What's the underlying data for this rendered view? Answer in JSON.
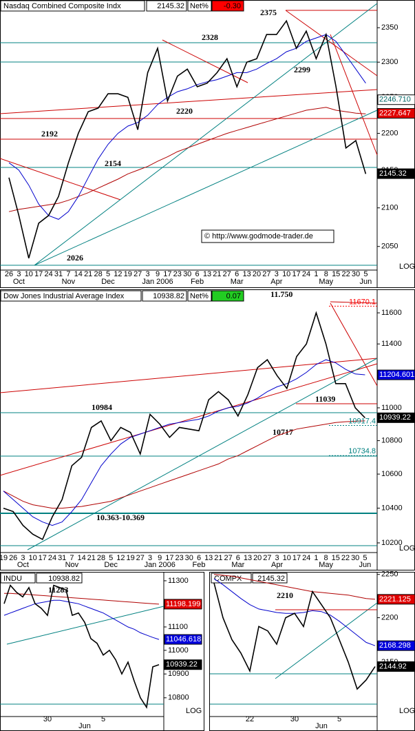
{
  "chart_data": [
    {
      "type": "line",
      "title": "Nasdaq Combined Composite Indx",
      "last": "2145.32",
      "net_label": "Net%",
      "net": "-0.30",
      "net_color": "#ff0000",
      "categories": [
        "26",
        "3",
        "10",
        "17",
        "24",
        "31",
        "7",
        "14",
        "21",
        "28",
        "5",
        "12",
        "19",
        "27",
        "3",
        "9",
        "17",
        "23",
        "30",
        "6",
        "13",
        "21",
        "27",
        "6",
        "13",
        "20",
        "27",
        "3",
        "10",
        "17",
        "24",
        "1",
        "8",
        "15",
        "22",
        "30",
        "5"
      ],
      "month_labels": [
        null,
        "Oct",
        null,
        null,
        null,
        null,
        "Nov",
        null,
        null,
        null,
        "Dec",
        null,
        null,
        null,
        null,
        "Jan 2006",
        null,
        null,
        null,
        "Feb",
        null,
        null,
        null,
        "Mar",
        null,
        null,
        null,
        "Apr",
        null,
        null,
        null,
        null,
        "May",
        null,
        null,
        null,
        "Jun"
      ],
      "series": [
        {
          "color": "#b00000",
          "values": [
            2095,
            2098,
            2100,
            2102,
            2104,
            2106,
            2110,
            2115,
            2120,
            2126,
            2132,
            2138,
            2145,
            2150,
            2155,
            2162,
            2168,
            2175,
            2180,
            2185,
            2190,
            2195,
            2200,
            2204,
            2208,
            2212,
            2216,
            2220,
            2224,
            2228,
            2232,
            2234,
            2236,
            2232,
            2230,
            2228,
            2227
          ]
        },
        {
          "color": "#0000cc",
          "values": [
            2160,
            2150,
            2130,
            2105,
            2090,
            2085,
            2095,
            2115,
            2140,
            2165,
            2185,
            2200,
            2210,
            2215,
            2225,
            2240,
            2250,
            2258,
            2262,
            2268,
            2272,
            2275,
            2280,
            2285,
            2285,
            2290,
            2298,
            2305,
            2315,
            2320,
            2330,
            2335,
            2340,
            2330,
            2310,
            2290,
            2270
          ]
        },
        {
          "color": "#000000",
          "values": [
            2140,
            2090,
            2035,
            2080,
            2090,
            2115,
            2160,
            2200,
            2230,
            2235,
            2255,
            2255,
            2250,
            2205,
            2285,
            2320,
            2245,
            2280,
            2290,
            2265,
            2270,
            2285,
            2305,
            2265,
            2300,
            2305,
            2340,
            2340,
            2360,
            2320,
            2345,
            2305,
            2340,
            2265,
            2180,
            2190,
            2145
          ]
        }
      ],
      "ylim": [
        2020,
        2391
      ],
      "yticks": [
        2050,
        2100,
        2150,
        2200,
        2250,
        2300,
        2350
      ],
      "log_scale": true,
      "scale_label": "LOG",
      "price_tags": [
        {
          "value": 2246.71,
          "label": "2246.710",
          "fill": "#ffffff",
          "text_color": "#006666"
        },
        {
          "value": 2227.647,
          "label": "2227.647",
          "fill": "#e00000",
          "text_color": "#ffffff"
        },
        {
          "value": 2145.32,
          "label": "2145.32",
          "fill": "#000000",
          "text_color": "#ffffff"
        }
      ],
      "annotations": [
        "2375",
        "2328",
        "2220",
        "2192",
        "2154",
        "2299",
        "2026",
        "© http://www.godmode-trader.de"
      ]
    },
    {
      "type": "line",
      "title": "Dow Jones Industrial Average Index",
      "last": "10938.82",
      "net_label": "Net%",
      "net": "0.07",
      "net_color": "#22cc22",
      "categories": [
        "19",
        "26",
        "3",
        "10",
        "17",
        "24",
        "31",
        "7",
        "14",
        "21",
        "28",
        "5",
        "12",
        "19",
        "27",
        "3",
        "9",
        "17",
        "23",
        "30",
        "6",
        "13",
        "21",
        "27",
        "6",
        "13",
        "20",
        "27",
        "3",
        "10",
        "17",
        "24",
        "1",
        "8",
        "15",
        "22",
        "30",
        "5"
      ],
      "month_labels": [
        null,
        null,
        "Oct",
        null,
        null,
        null,
        null,
        "Nov",
        null,
        null,
        null,
        "Dec",
        null,
        null,
        null,
        null,
        "Jan 2006",
        null,
        null,
        null,
        "Feb",
        null,
        null,
        null,
        "Mar",
        null,
        null,
        null,
        "Apr",
        null,
        null,
        null,
        null,
        "May",
        null,
        null,
        null,
        "Jun"
      ],
      "series": [
        {
          "color": "#b00000",
          "values": [
            10500,
            10470,
            10440,
            10420,
            10410,
            10400,
            10400,
            10405,
            10410,
            10420,
            10430,
            10440,
            10460,
            10480,
            10500,
            10520,
            10540,
            10560,
            10580,
            10600,
            10620,
            10640,
            10660,
            10690,
            10710,
            10740,
            10770,
            10800,
            10830,
            10850,
            10870,
            10880,
            10890,
            10900,
            10910,
            10915,
            10918,
            10920
          ]
        },
        {
          "color": "#0000cc",
          "values": [
            10500,
            10450,
            10400,
            10350,
            10320,
            10300,
            10320,
            10380,
            10450,
            10550,
            10650,
            10720,
            10780,
            10820,
            10840,
            10860,
            10880,
            10900,
            10910,
            10920,
            10930,
            10950,
            10980,
            11000,
            11010,
            11030,
            11060,
            11100,
            11130,
            11150,
            11180,
            11220,
            11270,
            11300,
            11280,
            11240,
            11210,
            11205
          ]
        },
        {
          "color": "#000000",
          "values": [
            10400,
            10380,
            10300,
            10250,
            10220,
            10350,
            10450,
            10650,
            10700,
            10880,
            10920,
            10800,
            10880,
            10850,
            10720,
            10960,
            10900,
            10820,
            10880,
            10870,
            10860,
            11050,
            11100,
            11050,
            10950,
            11080,
            11250,
            11300,
            11200,
            11120,
            11320,
            11400,
            11600,
            11400,
            11150,
            11150,
            11000,
            10939
          ]
        }
      ],
      "ylim": [
        10145,
        11663
      ],
      "yticks": [
        10200,
        10400,
        10600,
        10800,
        11000,
        11200,
        11400,
        11600
      ],
      "log_scale": true,
      "scale_label": "LOG",
      "price_tags": [
        {
          "value": 11204.601,
          "label": "11204.601",
          "fill": "#0000dd",
          "text_color": "#ffffff"
        },
        {
          "value": 10939.22,
          "label": "10939.22",
          "fill": "#000000",
          "text_color": "#ffffff"
        },
        {
          "value": 10917.4,
          "label": "10917.4",
          "fill": "none",
          "text_color": "#008080"
        },
        {
          "value": 10734.8,
          "label": "10734.8",
          "fill": "none",
          "text_color": "#008080"
        },
        {
          "value": 11670.1,
          "label": "11670.1",
          "fill": "none",
          "text_color": "#ff0000"
        }
      ],
      "annotations": [
        "11.750",
        "10984",
        "11039",
        "10717",
        "10.363-10.369"
      ]
    },
    {
      "type": "line",
      "title": "INDU",
      "last": "10938.82",
      "categories": [
        null,
        null,
        null,
        null,
        null,
        null,
        null,
        "30",
        null,
        null,
        null,
        null,
        null,
        null,
        null,
        null,
        "5",
        null,
        null,
        null,
        null,
        null,
        null,
        null,
        null,
        null
      ],
      "month_labels": [
        null,
        null,
        null,
        null,
        null,
        null,
        null,
        null,
        null,
        null,
        null,
        null,
        null,
        "Jun",
        null,
        null,
        null,
        null,
        null,
        null,
        null,
        null,
        null,
        null,
        null,
        null
      ],
      "series": [
        {
          "color": "#b00000",
          "values": [
            11245,
            11245,
            11243,
            11242,
            11240,
            11238,
            11236,
            11234,
            11232,
            11230,
            11228,
            11226,
            11224,
            11222,
            11220,
            11218,
            11216,
            11214,
            11212,
            11210,
            11208,
            11206,
            11204,
            11202,
            11200,
            11198.199
          ]
        },
        {
          "color": "#0000cc",
          "values": [
            11150,
            11160,
            11170,
            11180,
            11190,
            11200,
            11205,
            11210,
            11215,
            11215,
            11210,
            11205,
            11200,
            11190,
            11180,
            11170,
            11160,
            11145,
            11130,
            11115,
            11100,
            11090,
            11075,
            11065,
            11055,
            11046.618
          ]
        },
        {
          "color": "#000000",
          "values": [
            11200,
            11280,
            11250,
            11230,
            11270,
            11200,
            11180,
            11150,
            11280,
            11270,
            11260,
            11150,
            11160,
            11120,
            11050,
            11030,
            10980,
            11000,
            10960,
            10900,
            10950,
            10870,
            10800,
            10760,
            10930,
            10939
          ]
        }
      ],
      "ylim": [
        10722,
        11333
      ],
      "yticks": [
        10800,
        10900,
        11000,
        11100,
        11200,
        11300
      ],
      "log_scale": true,
      "scale_label": "LOG",
      "price_tags": [
        {
          "value": 11198.199,
          "label": "11198.199",
          "fill": "#e00000",
          "text_color": "#ffffff"
        },
        {
          "value": 11046.618,
          "label": "11046.618",
          "fill": "#0000dd",
          "text_color": "#ffffff"
        },
        {
          "value": 10939.22,
          "label": "10939.22",
          "fill": "#000000",
          "text_color": "#ffffff"
        }
      ],
      "annotations": [
        "11283"
      ]
    },
    {
      "type": "line",
      "title": "COMPX",
      "last": "2145.32",
      "categories": [
        null,
        null,
        null,
        null,
        "22",
        null,
        null,
        null,
        null,
        "30",
        null,
        null,
        null,
        null,
        "5",
        null,
        null,
        null,
        null
      ],
      "month_labels": [
        null,
        null,
        null,
        null,
        null,
        null,
        null,
        null,
        null,
        null,
        null,
        null,
        "Jun",
        null,
        null,
        null,
        null,
        null,
        null
      ],
      "series": [
        {
          "color": "#b00000",
          "values": [
            2250,
            2249,
            2248,
            2246,
            2244,
            2242,
            2240,
            2238,
            2236,
            2234,
            2232,
            2230,
            2229,
            2228,
            2227,
            2226,
            2224,
            2222,
            2221.125
          ]
        },
        {
          "color": "#0000cc",
          "values": [
            2245,
            2238,
            2230,
            2222,
            2215,
            2210,
            2208,
            2206,
            2205,
            2205,
            2206,
            2208,
            2207,
            2203,
            2196,
            2188,
            2180,
            2172,
            2168.298
          ]
        },
        {
          "color": "#000000",
          "values": [
            2240,
            2200,
            2175,
            2160,
            2140,
            2190,
            2185,
            2170,
            2200,
            2205,
            2190,
            2230,
            2215,
            2200,
            2175,
            2150,
            2120,
            2130,
            2145
          ]
        }
      ],
      "ylim": [
        2090,
        2253
      ],
      "yticks": [
        2150,
        2200,
        2250
      ],
      "log_scale": true,
      "scale_label": "LOG",
      "price_tags": [
        {
          "value": 2221.125,
          "label": "2221.125",
          "fill": "#e00000",
          "text_color": "#ffffff"
        },
        {
          "value": 2168.298,
          "label": "2168.298",
          "fill": "#0000dd",
          "text_color": "#ffffff"
        },
        {
          "value": 2144.92,
          "label": "2144.92",
          "fill": "#000000",
          "text_color": "#ffffff"
        }
      ],
      "annotations": [
        "2210"
      ]
    }
  ]
}
